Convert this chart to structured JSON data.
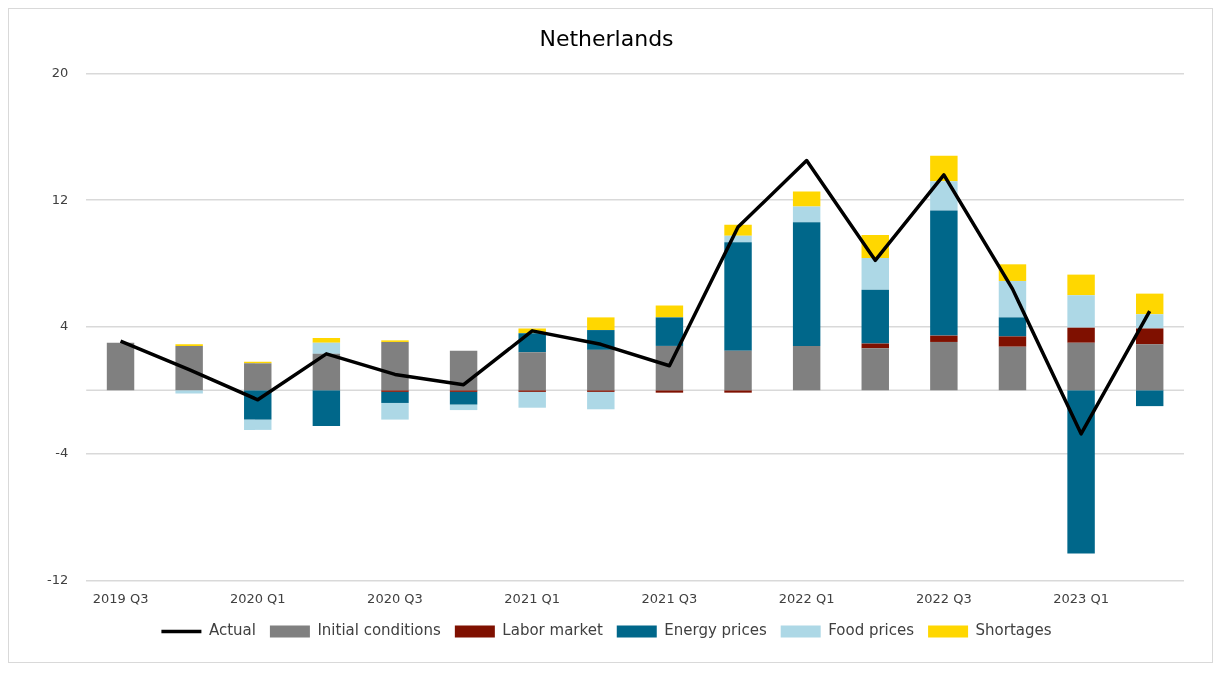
{
  "chart_data": {
    "type": "bar",
    "title": "Netherlands",
    "categories": [
      "2019 Q3",
      null,
      "2020 Q1",
      null,
      "2020 Q3",
      null,
      "2021 Q1",
      null,
      "2021 Q3",
      null,
      "2022 Q1",
      null,
      "2022 Q3",
      null,
      "2023 Q1",
      null
    ],
    "series": [
      {
        "name": "Initial conditions",
        "color": "#808080",
        "values": [
          3.0,
          2.8,
          1.7,
          2.3,
          3.05,
          2.5,
          2.4,
          2.55,
          2.8,
          2.5,
          2.8,
          2.65,
          3.05,
          2.75,
          3.0,
          2.9
        ]
      },
      {
        "name": "Labor market",
        "color": "#7f1000",
        "values": [
          0,
          0,
          0,
          0,
          -0.1,
          -0.1,
          -0.1,
          -0.1,
          -0.15,
          -0.15,
          0,
          0.3,
          0.4,
          0.65,
          0.95,
          1.0
        ]
      },
      {
        "name": "Energy prices",
        "color": "#00678a",
        "values": [
          0,
          0,
          -1.85,
          -2.25,
          -0.7,
          -0.8,
          1.2,
          1.25,
          1.8,
          6.85,
          7.8,
          3.4,
          7.9,
          1.2,
          -10.3,
          -1.0
        ]
      },
      {
        "name": "Food prices",
        "color": "#add8e6",
        "values": [
          0,
          -0.2,
          -0.65,
          0.7,
          -1.05,
          -0.35,
          -1.0,
          -1.1,
          0,
          0.4,
          1.0,
          2.0,
          1.85,
          2.3,
          2.05,
          0.9
        ]
      },
      {
        "name": "Shortages",
        "color": "#ffd700",
        "values": [
          0,
          0.1,
          0.1,
          0.3,
          0.1,
          0,
          0.3,
          0.8,
          0.75,
          0.7,
          0.95,
          1.45,
          1.6,
          1.05,
          1.3,
          1.3
        ]
      },
      {
        "name": "Actual",
        "type": "line",
        "color": "#000000",
        "values": [
          3.1,
          1.3,
          -0.6,
          2.3,
          1.0,
          0.35,
          3.75,
          2.9,
          1.55,
          10.3,
          14.5,
          8.2,
          13.6,
          6.4,
          -2.75,
          5.0
        ]
      }
    ],
    "stacked": true,
    "ylim": [
      -12,
      20
    ],
    "yticks": [
      -12,
      -4,
      4,
      12,
      20
    ],
    "grid": "y",
    "legend": "bottom"
  }
}
